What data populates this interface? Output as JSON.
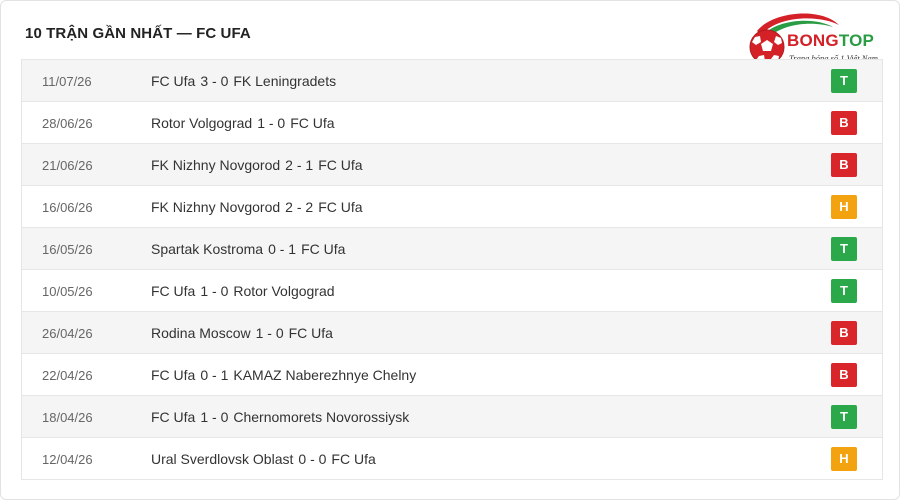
{
  "header": {
    "title": "10 TRẬN GẦN NHẤT — FC UFA"
  },
  "logo": {
    "brand_part1": "BONG",
    "brand_part2": "TOP",
    "tagline": "Trang bóng số 1 Việt Nam",
    "colors": {
      "red": "#d42027",
      "green": "#2a9d44"
    }
  },
  "result_colors": {
    "T": "#2aa84a",
    "B": "#d9262b",
    "H": "#f2a30f"
  },
  "matches": [
    {
      "date": "11/07/26",
      "home": "FC Ufa",
      "score": "3 - 0",
      "away": "FK Leningradets",
      "result": "T"
    },
    {
      "date": "28/06/26",
      "home": "Rotor Volgograd",
      "score": "1 - 0",
      "away": "FC Ufa",
      "result": "B"
    },
    {
      "date": "21/06/26",
      "home": "FK Nizhny Novgorod",
      "score": "2 - 1",
      "away": "FC Ufa",
      "result": "B"
    },
    {
      "date": "16/06/26",
      "home": "FK Nizhny Novgorod",
      "score": "2 - 2",
      "away": "FC Ufa",
      "result": "H"
    },
    {
      "date": "16/05/26",
      "home": "Spartak Kostroma",
      "score": "0 - 1",
      "away": "FC Ufa",
      "result": "T"
    },
    {
      "date": "10/05/26",
      "home": "FC Ufa",
      "score": "1 - 0",
      "away": "Rotor Volgograd",
      "result": "T"
    },
    {
      "date": "26/04/26",
      "home": "Rodina Moscow",
      "score": "1 - 0",
      "away": "FC Ufa",
      "result": "B"
    },
    {
      "date": "22/04/26",
      "home": "FC Ufa",
      "score": "0 - 1",
      "away": "KAMAZ Naberezhnye Chelny",
      "result": "B"
    },
    {
      "date": "18/04/26",
      "home": "FC Ufa",
      "score": "1 - 0",
      "away": "Chernomorets Novorossiysk",
      "result": "T"
    },
    {
      "date": "12/04/26",
      "home": "Ural Sverdlovsk Oblast",
      "score": "0 - 0",
      "away": "FC Ufa",
      "result": "H"
    }
  ]
}
